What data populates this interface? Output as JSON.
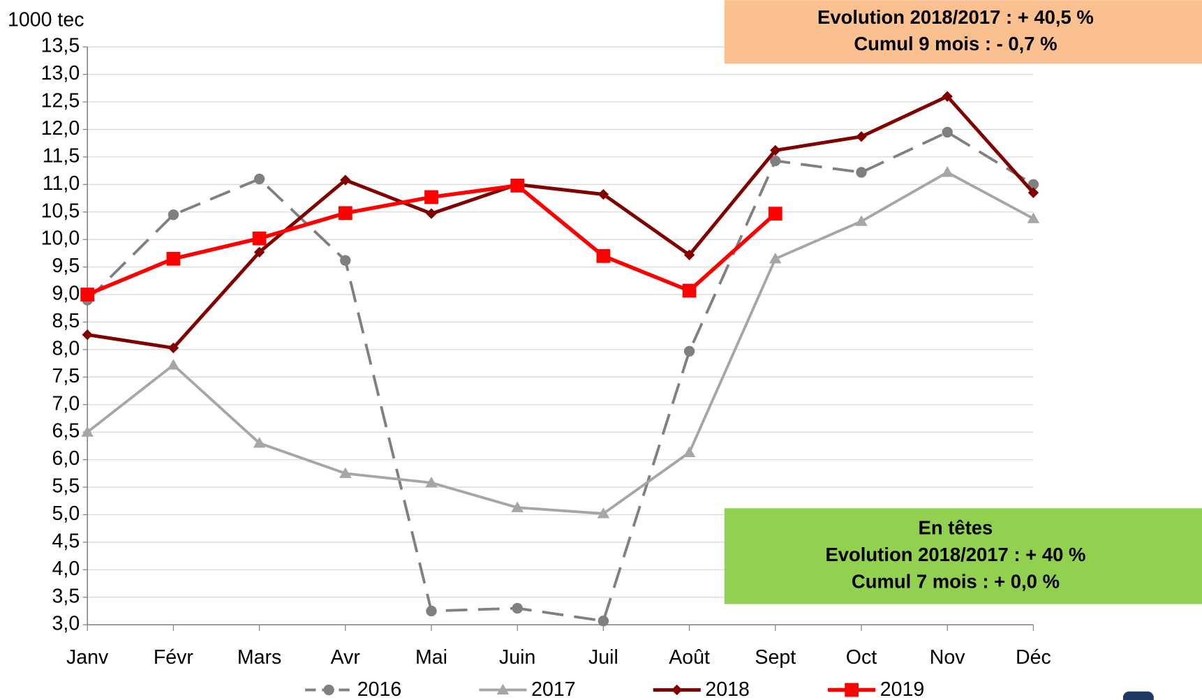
{
  "chart_data": {
    "type": "line",
    "y_axis_label": "1000 tec",
    "categories": [
      "Janv",
      "Févr",
      "Mars",
      "Avr",
      "Mai",
      "Juin",
      "Juil",
      "Août",
      "Sept",
      "Oct",
      "Nov",
      "Déc"
    ],
    "series": [
      {
        "name": "2016",
        "color": "#808080",
        "dash": true,
        "marker": "circle",
        "values": [
          8.9,
          10.45,
          11.1,
          9.62,
          3.25,
          3.3,
          3.07,
          7.97,
          11.43,
          11.22,
          11.95,
          11.0
        ]
      },
      {
        "name": "2017",
        "color": "#a6a6a6",
        "dash": false,
        "marker": "triangle",
        "values": [
          6.5,
          7.72,
          6.3,
          5.75,
          5.58,
          5.13,
          5.02,
          6.13,
          9.65,
          10.33,
          11.22,
          10.38
        ]
      },
      {
        "name": "2018",
        "color": "#800000",
        "dash": false,
        "marker": "diamond",
        "values": [
          8.27,
          8.03,
          9.77,
          11.08,
          10.47,
          11.0,
          10.82,
          9.72,
          11.62,
          11.87,
          12.6,
          10.85
        ]
      },
      {
        "name": "2019",
        "color": "#ff0000",
        "dash": false,
        "marker": "square",
        "values": [
          9.0,
          9.65,
          10.02,
          10.48,
          10.77,
          10.98,
          9.7,
          9.07,
          10.47,
          null,
          null,
          null
        ]
      }
    ],
    "ylim": [
      3.0,
      13.5
    ],
    "yticks": [
      {
        "value": 3.0,
        "label": "3,0"
      },
      {
        "value": 3.5,
        "label": "3,5"
      },
      {
        "value": 4.0,
        "label": "4,0"
      },
      {
        "value": 4.5,
        "label": "4,5"
      },
      {
        "value": 5.0,
        "label": "5,0"
      },
      {
        "value": 5.5,
        "label": "5,5"
      },
      {
        "value": 6.0,
        "label": "6,0"
      },
      {
        "value": 6.5,
        "label": "6,5"
      },
      {
        "value": 7.0,
        "label": "7,0"
      },
      {
        "value": 7.5,
        "label": "7,5"
      },
      {
        "value": 8.0,
        "label": "8,0"
      },
      {
        "value": 8.5,
        "label": "8,5"
      },
      {
        "value": 9.0,
        "label": "9,0"
      },
      {
        "value": 9.5,
        "label": "9,5"
      },
      {
        "value": 10.0,
        "label": "10,0"
      },
      {
        "value": 10.5,
        "label": "10,5"
      },
      {
        "value": 11.0,
        "label": "11,0"
      },
      {
        "value": 11.5,
        "label": "11,5"
      },
      {
        "value": 12.0,
        "label": "12,0"
      },
      {
        "value": 12.5,
        "label": "12,5"
      },
      {
        "value": 13.0,
        "label": "13,0"
      },
      {
        "value": 13.5,
        "label": "13,5"
      }
    ],
    "grid": true,
    "legend": "bottom",
    "annotations": [
      {
        "color": "#fac090",
        "lines": [
          "Evolution 2018/2017 : + 40,5 %",
          "Cumul 9 mois : - 0,7 %"
        ]
      },
      {
        "color": "#92d050",
        "lines": [
          "En têtes",
          "Evolution 2018/2017 : + 40 %",
          "Cumul 7 mois : + 0,0 %"
        ]
      }
    ]
  }
}
